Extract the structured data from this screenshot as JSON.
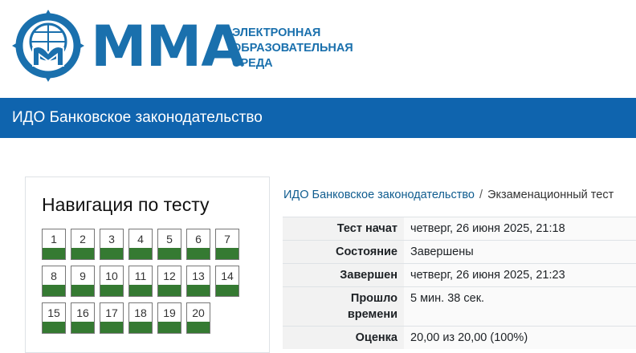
{
  "header": {
    "logo_text": "ММА",
    "logo_subtitle": [
      "ЭЛЕКТРОННАЯ",
      "ОБРАЗОВАТЕЛЬНАЯ",
      "СРЕДА"
    ],
    "brand_color": "#1a70ad"
  },
  "banner": {
    "title": "ИДО Банковское законодательство",
    "color": "#0f64ae"
  },
  "nav": {
    "title": "Навигация по тесту",
    "questions": [
      "1",
      "2",
      "3",
      "4",
      "5",
      "6",
      "7",
      "8",
      "9",
      "10",
      "11",
      "12",
      "13",
      "14",
      "15",
      "16",
      "17",
      "18",
      "19",
      "20"
    ],
    "status": "answered",
    "status_color": "#357a32"
  },
  "breadcrumb": {
    "course": "ИДО Банковское законодательство",
    "separator": "/",
    "current": "Экзаменационный тест"
  },
  "summary": [
    {
      "label": "Тест начат",
      "value": "четверг, 26 июня 2025, 21:18"
    },
    {
      "label": "Состояние",
      "value": "Завершены"
    },
    {
      "label": "Завершен",
      "value": "четверг, 26 июня 2025, 21:23"
    },
    {
      "label": "Прошло времени",
      "value": "5 мин. 38 сек."
    },
    {
      "label": "Оценка",
      "value": "20,00 из 20,00 (100%)"
    }
  ]
}
